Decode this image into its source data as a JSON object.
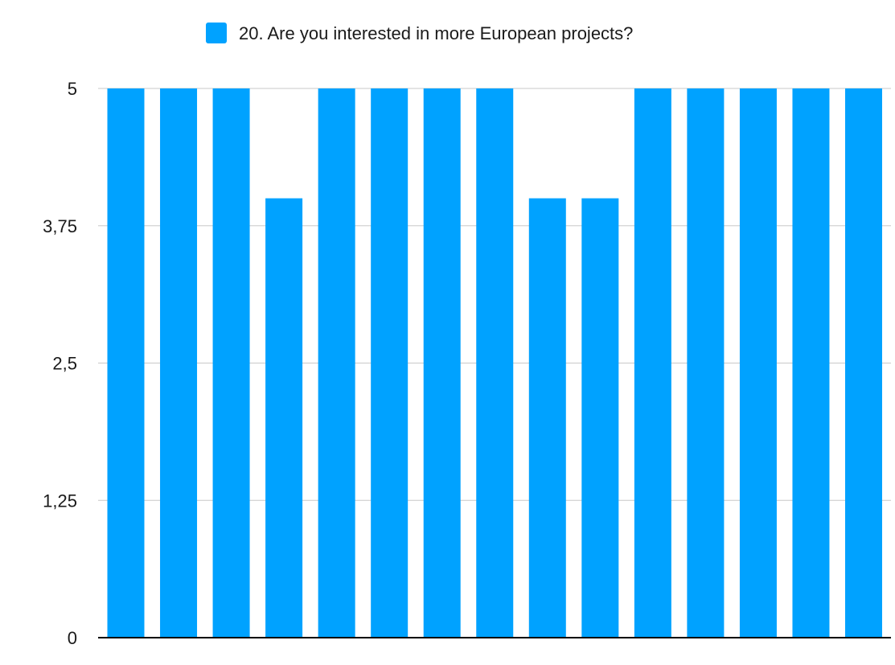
{
  "chart_data": {
    "type": "bar",
    "categories": [
      "",
      "",
      "",
      "",
      "",
      "",
      "",
      "",
      "",
      "",
      "",
      "",
      "",
      "",
      ""
    ],
    "series": [
      {
        "name": "20. Are you interested in more European projects?",
        "values": [
          5,
          5,
          5,
          4,
          5,
          5,
          5,
          5,
          4,
          4,
          5,
          5,
          5,
          5,
          5
        ],
        "color": "#00a2ff"
      }
    ],
    "ylim": [
      0,
      5
    ],
    "yticks": [
      0,
      1.25,
      2.5,
      3.75,
      5
    ],
    "ytick_labels": [
      "0",
      "1,25",
      "2,5",
      "3,75",
      "5"
    ],
    "legend_position": "top",
    "grid": true,
    "title": "",
    "xlabel": "",
    "ylabel": ""
  },
  "colors": {
    "gridline": "#c8c8c8",
    "axis": "#000000"
  }
}
